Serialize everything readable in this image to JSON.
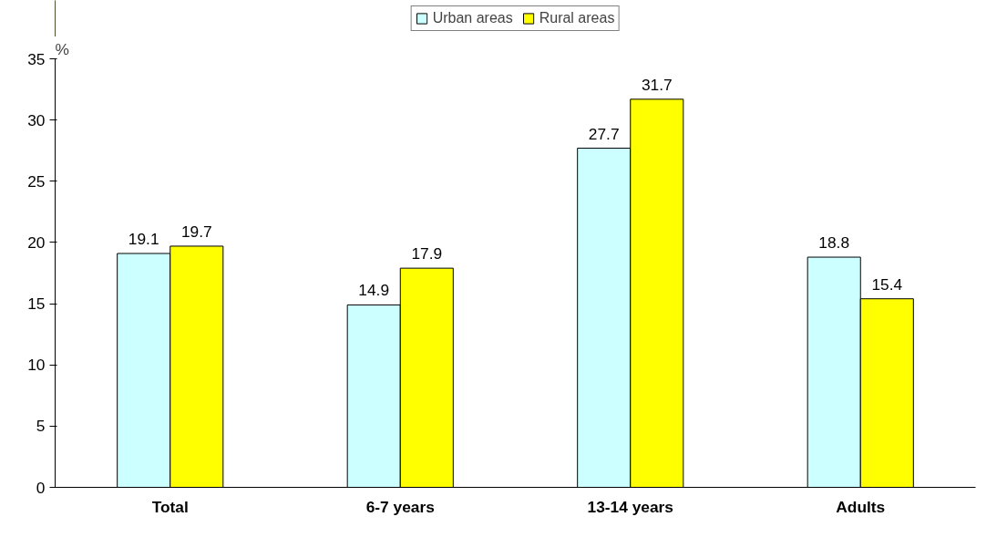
{
  "chart_data": {
    "type": "bar",
    "ylabel": "%",
    "categories": [
      "Total",
      "6-7 years",
      "13-14 years",
      "Adults"
    ],
    "series": [
      {
        "name": "Urban areas",
        "color": "#ccffff",
        "values": [
          19.1,
          14.9,
          27.7,
          18.8
        ]
      },
      {
        "name": "Rural areas",
        "color": "#ffff00",
        "values": [
          19.7,
          17.9,
          31.7,
          15.4
        ]
      }
    ],
    "ylim": [
      0,
      35
    ],
    "yticks": [
      0,
      5,
      10,
      15,
      20,
      25,
      30,
      35
    ],
    "data_labels": true,
    "legend": "top",
    "grid": false
  }
}
